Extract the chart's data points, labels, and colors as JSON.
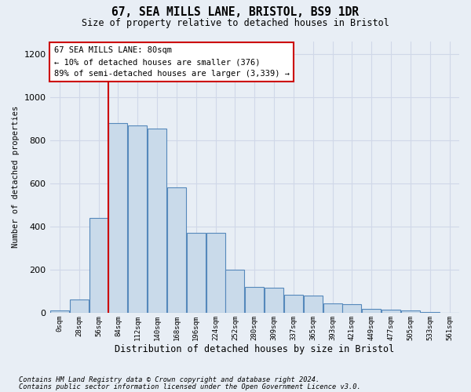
{
  "title1": "67, SEA MILLS LANE, BRISTOL, BS9 1DR",
  "title2": "Size of property relative to detached houses in Bristol",
  "xlabel": "Distribution of detached houses by size in Bristol",
  "ylabel": "Number of detached properties",
  "footnote1": "Contains HM Land Registry data © Crown copyright and database right 2024.",
  "footnote2": "Contains public sector information licensed under the Open Government Licence v3.0.",
  "annotation_line1": "67 SEA MILLS LANE: 80sqm",
  "annotation_line2": "← 10% of detached houses are smaller (376)",
  "annotation_line3": "89% of semi-detached houses are larger (3,339) →",
  "bar_color": "#c9daea",
  "bar_edge_color": "#5588bb",
  "grid_color": "#d0d8e8",
  "red_line_color": "#cc0000",
  "annotation_box_edge": "#cc0000",
  "background_color": "#e8eef5",
  "categories": [
    "0sqm",
    "28sqm",
    "56sqm",
    "84sqm",
    "112sqm",
    "140sqm",
    "168sqm",
    "196sqm",
    "224sqm",
    "252sqm",
    "280sqm",
    "309sqm",
    "337sqm",
    "365sqm",
    "393sqm",
    "421sqm",
    "449sqm",
    "477sqm",
    "505sqm",
    "533sqm",
    "561sqm"
  ],
  "values": [
    12,
    62,
    440,
    880,
    870,
    855,
    580,
    370,
    370,
    200,
    120,
    115,
    82,
    78,
    45,
    38,
    18,
    14,
    9,
    2,
    1
  ],
  "ylim": [
    0,
    1260
  ],
  "yticks": [
    0,
    200,
    400,
    600,
    800,
    1000,
    1200
  ],
  "vline_position": 2.5,
  "figsize": [
    6.0,
    5.0
  ],
  "dpi": 100
}
